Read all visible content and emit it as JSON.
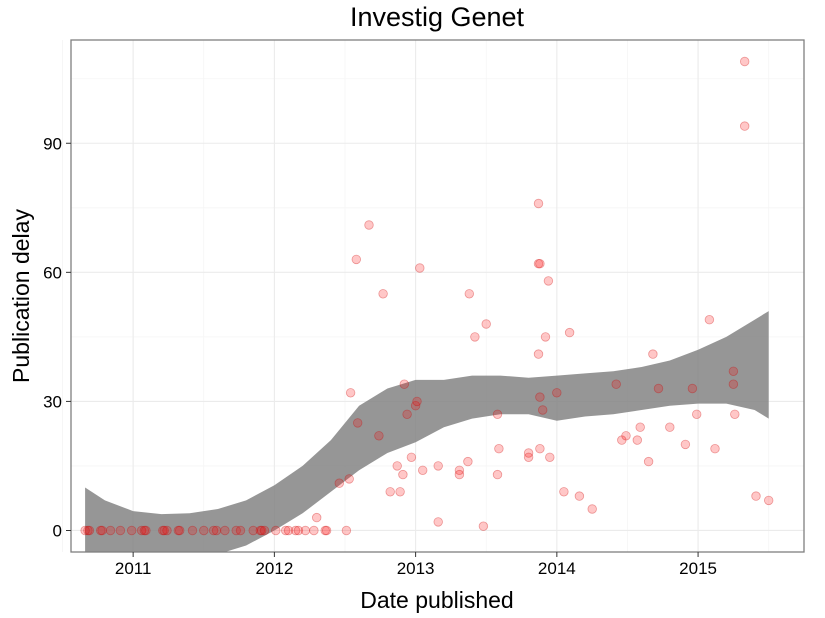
{
  "chart_data": {
    "type": "scatter",
    "title": "Investig Genet",
    "xlabel": "Date published",
    "ylabel": "Publication delay",
    "xlim": [
      2010.56,
      2015.75
    ],
    "ylim": [
      -5,
      114
    ],
    "x_ticks": [
      {
        "value": 2011,
        "label": "2011"
      },
      {
        "value": 2012,
        "label": "2012"
      },
      {
        "value": 2013,
        "label": "2013"
      },
      {
        "value": 2014,
        "label": "2014"
      },
      {
        "value": 2015,
        "label": "2015"
      }
    ],
    "y_ticks": [
      {
        "value": 0,
        "label": "0"
      },
      {
        "value": 30,
        "label": "30"
      },
      {
        "value": 60,
        "label": "60"
      },
      {
        "value": 90,
        "label": "90"
      }
    ],
    "grid": true,
    "point_color": "#ff0000",
    "band_color": "#7f7f7f",
    "points": [
      [
        2010.66,
        0
      ],
      [
        2010.68,
        0
      ],
      [
        2010.69,
        0
      ],
      [
        2010.77,
        0
      ],
      [
        2010.78,
        0
      ],
      [
        2010.84,
        0
      ],
      [
        2010.91,
        0
      ],
      [
        2010.99,
        0
      ],
      [
        2011.06,
        0
      ],
      [
        2011.08,
        0
      ],
      [
        2011.09,
        0
      ],
      [
        2011.21,
        0
      ],
      [
        2011.22,
        0
      ],
      [
        2011.24,
        0
      ],
      [
        2011.32,
        0
      ],
      [
        2011.33,
        0
      ],
      [
        2011.42,
        0
      ],
      [
        2011.5,
        0
      ],
      [
        2011.57,
        0
      ],
      [
        2011.59,
        0
      ],
      [
        2011.65,
        0
      ],
      [
        2011.73,
        0
      ],
      [
        2011.76,
        0
      ],
      [
        2011.85,
        0
      ],
      [
        2011.9,
        0
      ],
      [
        2011.91,
        0
      ],
      [
        2011.93,
        0
      ],
      [
        2012.01,
        0
      ],
      [
        2012.08,
        0
      ],
      [
        2012.1,
        0
      ],
      [
        2012.15,
        0
      ],
      [
        2012.17,
        0
      ],
      [
        2012.22,
        0
      ],
      [
        2012.28,
        0
      ],
      [
        2012.36,
        0
      ],
      [
        2012.37,
        0
      ],
      [
        2012.51,
        0
      ],
      [
        2012.3,
        3
      ],
      [
        2012.46,
        11
      ],
      [
        2012.53,
        12
      ],
      [
        2012.54,
        32
      ],
      [
        2012.59,
        25
      ],
      [
        2012.58,
        63
      ],
      [
        2012.67,
        71
      ],
      [
        2012.74,
        22
      ],
      [
        2012.77,
        55
      ],
      [
        2012.82,
        9
      ],
      [
        2012.87,
        15
      ],
      [
        2012.89,
        9
      ],
      [
        2012.91,
        13
      ],
      [
        2012.92,
        34
      ],
      [
        2012.94,
        27
      ],
      [
        2012.97,
        17
      ],
      [
        2013.0,
        29
      ],
      [
        2013.01,
        30
      ],
      [
        2013.03,
        61
      ],
      [
        2013.05,
        14
      ],
      [
        2013.16,
        15
      ],
      [
        2013.16,
        2
      ],
      [
        2013.31,
        14
      ],
      [
        2013.31,
        13
      ],
      [
        2013.37,
        16
      ],
      [
        2013.38,
        55
      ],
      [
        2013.42,
        45
      ],
      [
        2013.48,
        1
      ],
      [
        2013.5,
        48
      ],
      [
        2013.58,
        27
      ],
      [
        2013.58,
        13
      ],
      [
        2013.59,
        19
      ],
      [
        2013.8,
        18
      ],
      [
        2013.8,
        17
      ],
      [
        2013.87,
        76
      ],
      [
        2013.87,
        62
      ],
      [
        2013.88,
        62
      ],
      [
        2013.87,
        41
      ],
      [
        2013.88,
        31
      ],
      [
        2013.88,
        19
      ],
      [
        2013.9,
        28
      ],
      [
        2013.92,
        45
      ],
      [
        2013.94,
        58
      ],
      [
        2013.95,
        17
      ],
      [
        2014.0,
        32
      ],
      [
        2014.05,
        9
      ],
      [
        2014.09,
        46
      ],
      [
        2014.16,
        8
      ],
      [
        2014.25,
        5
      ],
      [
        2014.42,
        34
      ],
      [
        2014.46,
        21
      ],
      [
        2014.49,
        22
      ],
      [
        2014.57,
        21
      ],
      [
        2014.59,
        24
      ],
      [
        2014.65,
        16
      ],
      [
        2014.68,
        41
      ],
      [
        2014.72,
        33
      ],
      [
        2014.8,
        24
      ],
      [
        2014.91,
        20
      ],
      [
        2014.96,
        33
      ],
      [
        2014.99,
        27
      ],
      [
        2015.08,
        49
      ],
      [
        2015.12,
        19
      ],
      [
        2015.25,
        34
      ],
      [
        2015.25,
        37
      ],
      [
        2015.26,
        27
      ],
      [
        2015.33,
        109
      ],
      [
        2015.33,
        94
      ],
      [
        2015.41,
        8
      ],
      [
        2015.5,
        7
      ]
    ],
    "smooth_band": {
      "x": [
        2010.66,
        2010.8,
        2011.0,
        2011.2,
        2011.4,
        2011.6,
        2011.8,
        2012.0,
        2012.2,
        2012.4,
        2012.6,
        2012.8,
        2013.0,
        2013.2,
        2013.4,
        2013.6,
        2013.8,
        2014.0,
        2014.2,
        2014.4,
        2014.6,
        2014.8,
        2015.0,
        2015.2,
        2015.4,
        2015.5
      ],
      "upper": [
        10,
        7,
        4.5,
        3.8,
        4,
        5,
        7,
        10.5,
        15,
        21,
        29,
        33,
        35,
        35,
        36,
        36,
        35.5,
        36,
        36.5,
        37,
        38,
        39.5,
        42,
        45,
        49,
        51
      ],
      "lower": [
        -6,
        -6,
        -6,
        -6,
        -6,
        -5.5,
        -3.5,
        0,
        4,
        9,
        14,
        18,
        20.5,
        24,
        26,
        27,
        27,
        25.5,
        26.5,
        27,
        28,
        29,
        29.5,
        29.5,
        28,
        26
      ]
    }
  }
}
